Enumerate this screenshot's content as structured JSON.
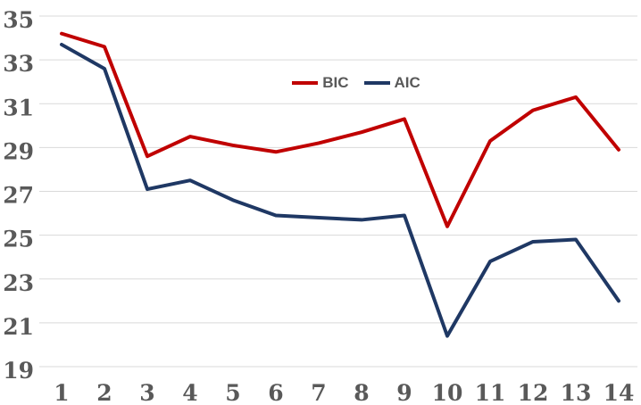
{
  "chart_data": {
    "type": "line",
    "title": "",
    "xlabel": "",
    "ylabel": "",
    "x": [
      1,
      2,
      3,
      4,
      5,
      6,
      7,
      8,
      9,
      10,
      11,
      12,
      13,
      14
    ],
    "series": [
      {
        "name": "BIC",
        "color": "#C00000",
        "values": [
          34.2,
          33.6,
          28.6,
          29.5,
          29.1,
          28.8,
          29.2,
          29.7,
          30.3,
          25.4,
          29.3,
          30.7,
          31.3,
          28.9
        ]
      },
      {
        "name": "AIC",
        "color": "#1F3864",
        "values": [
          33.7,
          32.6,
          27.1,
          27.5,
          26.6,
          25.9,
          25.8,
          25.7,
          25.9,
          20.4,
          23.8,
          24.7,
          24.8,
          22.0
        ]
      }
    ],
    "ylim": [
      19,
      35
    ],
    "yticks": [
      35,
      33,
      31,
      29,
      27,
      25,
      23,
      21,
      19
    ],
    "xticks": [
      1,
      2,
      3,
      4,
      5,
      6,
      7,
      8,
      9,
      10,
      11,
      12,
      13,
      14
    ],
    "grid": "horizontal-only",
    "legend_position": "top-center",
    "line_width": 4
  },
  "style": {
    "background": "#FFFFFF",
    "grid_color": "#D9D9D9",
    "tick_label_color": "#595959",
    "legend_text_color": "#595959"
  }
}
